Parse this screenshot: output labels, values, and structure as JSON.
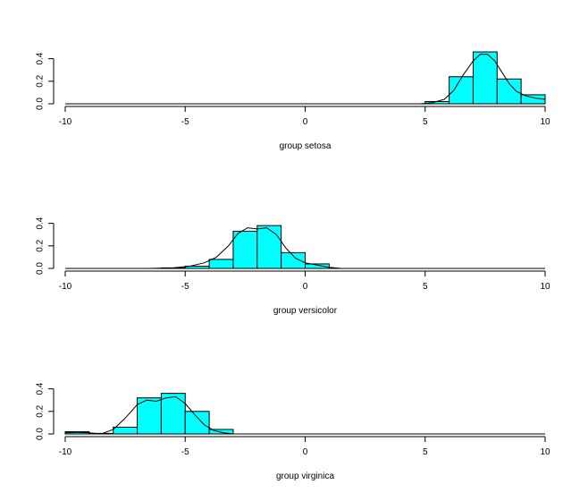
{
  "chart_data": {
    "type": "bar",
    "bar_color": "#00ffff",
    "edge_color": "#000000",
    "x_ticks": [
      -10,
      -5,
      0,
      5,
      10
    ],
    "xlim": [
      -10,
      10
    ],
    "ylim": [
      0,
      0.5
    ],
    "y_ticks": [
      0.0,
      0.2,
      0.4
    ],
    "y_tick_labels": [
      "0.0",
      "0.2",
      "0.4"
    ],
    "panels": [
      {
        "xlabel": "group setosa",
        "bins": [
          {
            "x0": 5.0,
            "x1": 6.0,
            "value": 0.02
          },
          {
            "x0": 6.0,
            "x1": 7.0,
            "value": 0.24
          },
          {
            "x0": 7.0,
            "x1": 8.0,
            "value": 0.46
          },
          {
            "x0": 8.0,
            "x1": 9.0,
            "value": 0.22
          },
          {
            "x0": 9.0,
            "x1": 10.0,
            "value": 0.08
          }
        ],
        "density": {
          "x": [
            4.8,
            5.3,
            5.8,
            6.2,
            6.6,
            7.0,
            7.3,
            7.6,
            7.9,
            8.2,
            8.5,
            8.8,
            9.2,
            9.6,
            10.0
          ],
          "y": [
            0.0,
            0.01,
            0.04,
            0.12,
            0.26,
            0.38,
            0.44,
            0.44,
            0.38,
            0.28,
            0.18,
            0.11,
            0.07,
            0.05,
            0.04
          ]
        }
      },
      {
        "xlabel": "group versicolor",
        "bins": [
          {
            "x0": -6.0,
            "x1": -5.0,
            "value": 0.005
          },
          {
            "x0": -5.0,
            "x1": -4.0,
            "value": 0.02
          },
          {
            "x0": -4.0,
            "x1": -3.0,
            "value": 0.08
          },
          {
            "x0": -3.0,
            "x1": -2.0,
            "value": 0.33
          },
          {
            "x0": -2.0,
            "x1": -1.0,
            "value": 0.38
          },
          {
            "x0": -1.0,
            "x1": 0.0,
            "value": 0.14
          },
          {
            "x0": 0.0,
            "x1": 1.0,
            "value": 0.04
          }
        ],
        "density": {
          "x": [
            -6.5,
            -5.5,
            -4.8,
            -4.2,
            -3.7,
            -3.2,
            -2.8,
            -2.4,
            -2.0,
            -1.6,
            -1.2,
            -0.8,
            -0.4,
            0.0,
            0.5,
            1.0,
            1.5
          ],
          "y": [
            0.0,
            0.005,
            0.02,
            0.05,
            0.1,
            0.2,
            0.31,
            0.36,
            0.35,
            0.36,
            0.3,
            0.18,
            0.09,
            0.05,
            0.03,
            0.01,
            0.0
          ]
        }
      },
      {
        "xlabel": "group virginica",
        "bins": [
          {
            "x0": -10.0,
            "x1": -9.0,
            "value": 0.02
          },
          {
            "x0": -9.0,
            "x1": -8.0,
            "value": 0.005
          },
          {
            "x0": -8.0,
            "x1": -7.0,
            "value": 0.06
          },
          {
            "x0": -7.0,
            "x1": -6.0,
            "value": 0.32
          },
          {
            "x0": -6.0,
            "x1": -5.0,
            "value": 0.36
          },
          {
            "x0": -5.0,
            "x1": -4.0,
            "value": 0.2
          },
          {
            "x0": -4.0,
            "x1": -3.0,
            "value": 0.04
          }
        ],
        "density": {
          "x": [
            -10.0,
            -9.5,
            -9.0,
            -8.5,
            -8.0,
            -7.5,
            -7.0,
            -6.6,
            -6.2,
            -5.8,
            -5.4,
            -5.0,
            -4.6,
            -4.2,
            -3.8,
            -3.4,
            -3.0
          ],
          "y": [
            0.01,
            0.015,
            0.01,
            0.0,
            0.04,
            0.14,
            0.26,
            0.3,
            0.29,
            0.32,
            0.33,
            0.27,
            0.17,
            0.08,
            0.03,
            0.01,
            0.0
          ]
        }
      }
    ]
  }
}
